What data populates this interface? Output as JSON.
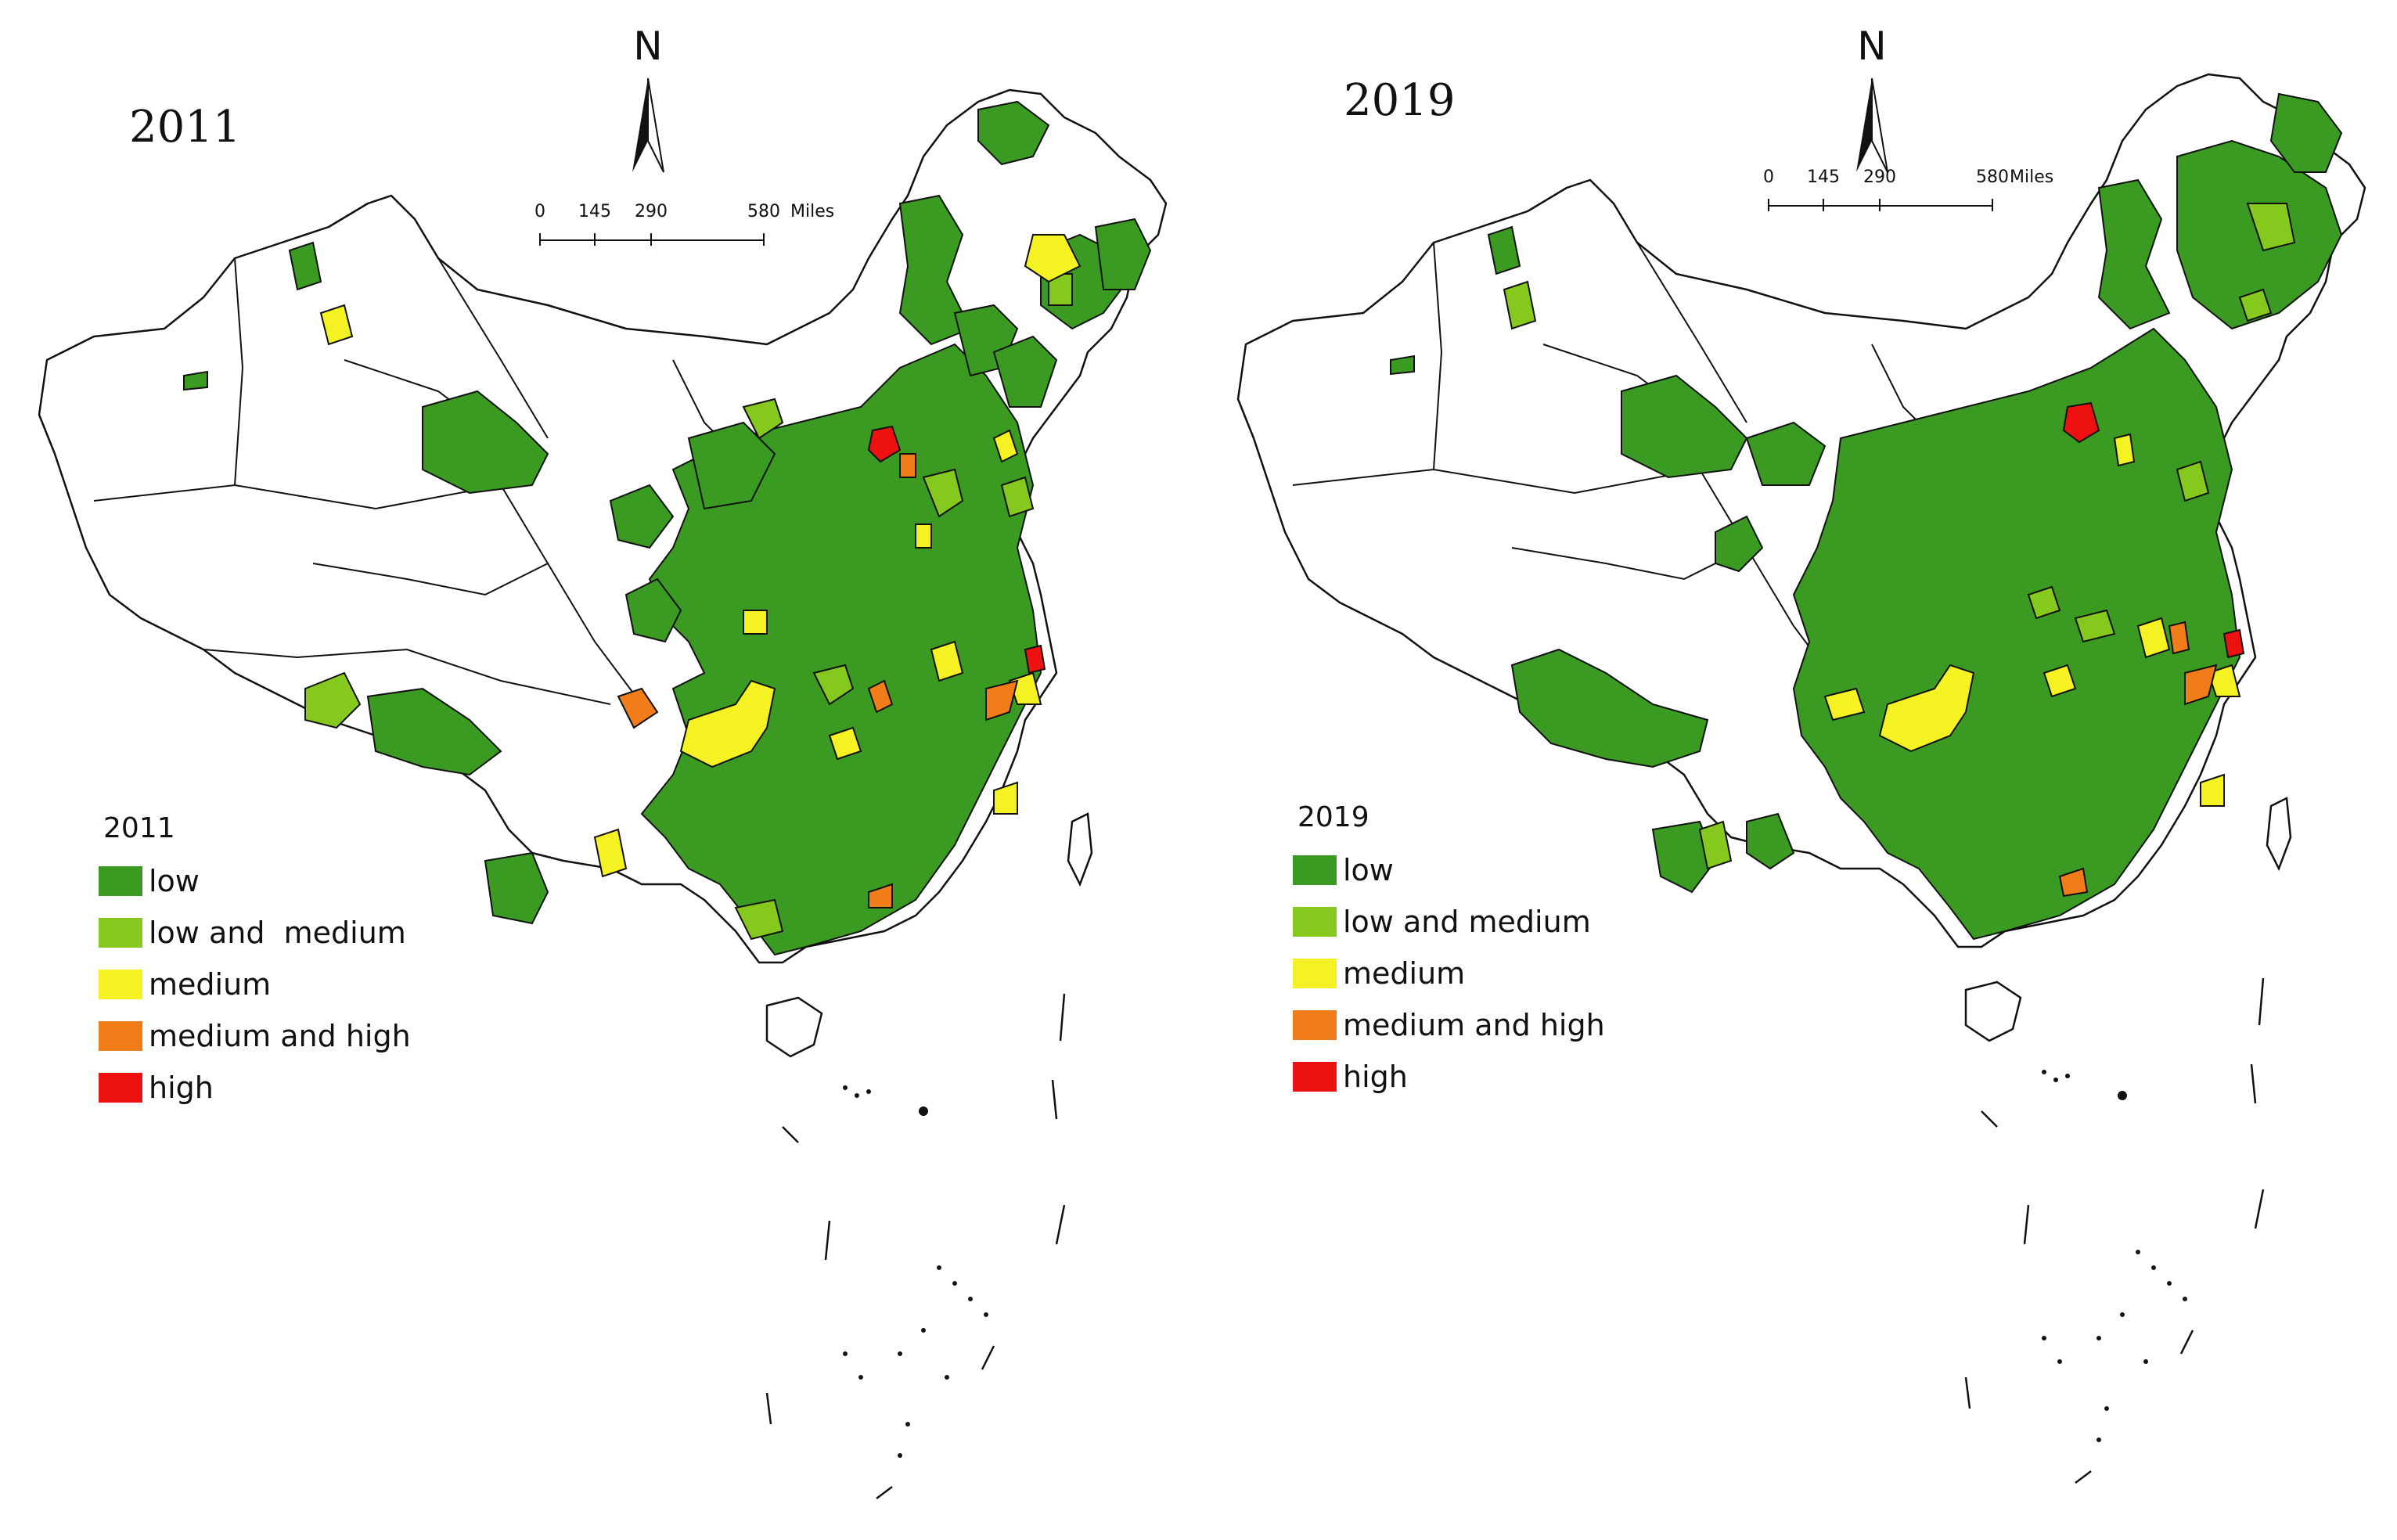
{
  "legend_items": [
    {
      "key": "low",
      "color": "#3a9a22"
    },
    {
      "key": "low_medium",
      "color": "#86c91e"
    },
    {
      "key": "medium",
      "color": "#f4f222"
    },
    {
      "key": "medium_high",
      "color": "#f07d1a"
    },
    {
      "key": "high",
      "color": "#ee1111"
    }
  ],
  "panels": [
    {
      "year_title": "2011",
      "north_label": "N",
      "scale": {
        "ticks": [
          "0",
          "145",
          "290",
          "580"
        ],
        "unit": "Miles"
      },
      "legend": {
        "title": "2011",
        "labels": [
          "low",
          "low and  medium",
          "medium",
          "medium and high",
          "high"
        ]
      }
    },
    {
      "year_title": "2019",
      "north_label": "N",
      "scale": {
        "ticks": [
          "0",
          "145",
          "290",
          "580"
        ],
        "unit": "Miles"
      },
      "legend": {
        "title": "2019",
        "labels": [
          "low",
          "low and medium",
          "medium",
          "medium and high",
          "high"
        ]
      }
    }
  ]
}
